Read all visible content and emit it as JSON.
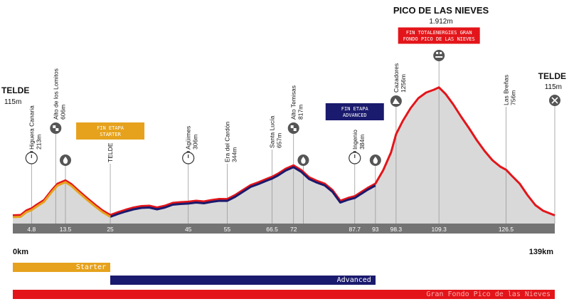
{
  "route": {
    "start": {
      "name": "TELDE",
      "elev": "115m"
    },
    "finish": {
      "name": "TELDE",
      "elev": "115m"
    },
    "summit": {
      "name": "PICO DE LAS NIEVES",
      "elev": "1.912m"
    },
    "km_start": "0km",
    "km_end": "139km"
  },
  "boxes": {
    "starter": "FIN ETAPA\nSTARTER",
    "advanced": "FIN ETAPA\nADVANCED",
    "granfondo": "FIN TOTALENERGIES GRAN\nFONDO PICO DE LAS NIEVES"
  },
  "points": [
    {
      "name": "Higuera Canaria",
      "elev": "213m",
      "km": 4.8,
      "icon": "stopwatch-icon"
    },
    {
      "name": "Alto de los Lomitos",
      "elev": "606m",
      "km": 11,
      "icon": "kom-flag-icon"
    },
    {
      "name": "",
      "elev": "",
      "km": 13.5,
      "icon": "water-drop-icon"
    },
    {
      "name": "TELDE",
      "elev": "",
      "km": 25,
      "icon": ""
    },
    {
      "name": "Agüimes",
      "elev": "306m",
      "km": 45,
      "icon": "stopwatch-icon"
    },
    {
      "name": "Era del Cardón",
      "elev": "344m",
      "km": 55,
      "icon": ""
    },
    {
      "name": "Santa Lucía",
      "elev": "657m",
      "km": 66.5,
      "icon": ""
    },
    {
      "name": "Alto Temisas",
      "elev": "817m",
      "km": 72,
      "icon": "kom-flag-icon"
    },
    {
      "name": "",
      "elev": "",
      "km": 74.5,
      "icon": "water-drop-icon"
    },
    {
      "name": "Ingenio",
      "elev": "384m",
      "km": 87.7,
      "icon": "stopwatch-icon"
    },
    {
      "name": "",
      "elev": "",
      "km": 93,
      "icon": "water-drop-icon"
    },
    {
      "name": "Cazadores",
      "elev": "1256m",
      "km": 98.3,
      "icon": "mountain-icon"
    },
    {
      "name": "",
      "elev": "",
      "km": 109.3,
      "icon": "summit-badge-icon"
    },
    {
      "name": "Las Breñas",
      "elev": "756m",
      "km": 126.5,
      "icon": ""
    },
    {
      "name": "",
      "elev": "",
      "km": 139,
      "icon": "cutlery-icon"
    }
  ],
  "chart_data": {
    "type": "area",
    "xlim": [
      0,
      139
    ],
    "ylim": [
      0,
      2000
    ],
    "x_ticks": [
      "4.8",
      "13.5",
      "25",
      "45",
      "55",
      "66.5",
      "72",
      "87.7",
      "93",
      "98.3",
      "109.3",
      "126.5"
    ],
    "x_tick_values": [
      4.8,
      13.5,
      25,
      45,
      55,
      66.5,
      72,
      87.7,
      93,
      98.3,
      109.3,
      126.5
    ],
    "x": [
      0,
      2,
      3.5,
      4.8,
      6,
      8,
      10,
      11.5,
      13.5,
      15,
      17,
      19,
      21,
      23,
      25,
      27,
      29,
      31,
      33,
      35,
      37,
      39,
      41,
      43,
      45,
      47,
      49,
      51,
      53,
      55,
      57,
      59,
      61,
      63,
      65,
      66.5,
      68,
      70,
      72,
      74,
      76,
      78,
      80,
      82,
      84,
      86,
      87.7,
      89,
      91,
      93,
      95,
      97,
      98.3,
      100,
      102,
      104,
      106,
      108,
      109.3,
      111,
      113,
      115,
      117,
      119,
      121,
      123,
      125,
      126.5,
      128,
      130,
      132,
      134,
      136,
      139
    ],
    "y": [
      115,
      120,
      185,
      213,
      260,
      330,
      470,
      560,
      606,
      555,
      455,
      360,
      270,
      185,
      120,
      160,
      195,
      225,
      245,
      250,
      225,
      250,
      290,
      300,
      306,
      320,
      310,
      330,
      345,
      344,
      400,
      470,
      540,
      580,
      625,
      657,
      700,
      770,
      817,
      750,
      650,
      600,
      560,
      470,
      320,
      360,
      384,
      430,
      500,
      560,
      750,
      1000,
      1256,
      1440,
      1620,
      1760,
      1840,
      1880,
      1912,
      1820,
      1670,
      1500,
      1340,
      1170,
      1020,
      890,
      800,
      756,
      670,
      560,
      400,
      260,
      180,
      115
    ]
  },
  "legend": [
    {
      "label": "Starter",
      "from_km": 0,
      "to_km": 25,
      "color": "#e6a21d",
      "text_color": "#ffffff"
    },
    {
      "label": "Advanced",
      "from_km": 25,
      "to_km": 93,
      "color": "#1a1a6e",
      "text_color": "#ffffff"
    },
    {
      "label": "Gran Fondo Pico de las Nieves",
      "from_km": 0,
      "to_km": 139,
      "color": "#e3151a",
      "text_color": "#f7b0b0"
    }
  ],
  "colors": {
    "fill": "#d9d9d9",
    "axis_band": "#737373",
    "starter": "#e6a21d",
    "advanced": "#1a1a6e",
    "granfondo": "#e3151a"
  }
}
